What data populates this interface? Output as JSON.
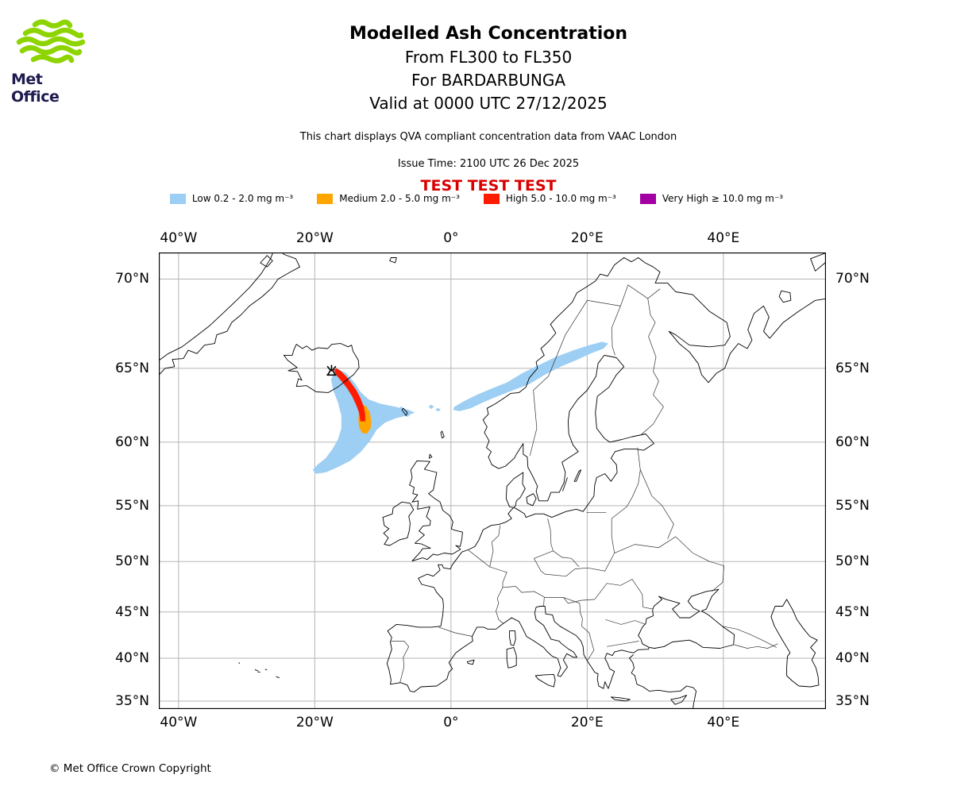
{
  "branding": {
    "logo_text": "Met Office",
    "logo_green": "#8dd400",
    "logo_navy": "#1d1a4e"
  },
  "header": {
    "title": "Modelled Ash Concentration",
    "subtitle1": "From FL300 to FL350",
    "subtitle2": "For BARDARBUNGA",
    "subtitle3": "Valid at 0000 UTC 27/12/2025",
    "note": "This chart displays QVA compliant concentration data from VAAC London",
    "issue_time": "Issue Time: 2100 UTC 26 Dec 2025",
    "test_banner": "TEST TEST TEST",
    "test_banner_color": "#d90000"
  },
  "legend": {
    "items": [
      {
        "key": "low",
        "label": "Low 0.2 - 2.0 mg m⁻³",
        "color": "#9dcef3"
      },
      {
        "key": "medium",
        "label": "Medium 2.0 - 5.0 mg m⁻³",
        "color": "#ffa500"
      },
      {
        "key": "high",
        "label": "High 5.0 - 10.0 mg m⁻³",
        "color": "#ff1a00"
      },
      {
        "key": "very_high",
        "label": "Very High  ≥  10.0 mg m⁻³",
        "color": "#a300a3"
      }
    ]
  },
  "map": {
    "x_ticks": [
      {
        "label": "40°W",
        "lon": -40
      },
      {
        "label": "20°W",
        "lon": -20
      },
      {
        "label": "0°",
        "lon": 0
      },
      {
        "label": "20°E",
        "lon": 20
      },
      {
        "label": "40°E",
        "lon": 40
      }
    ],
    "y_ticks": [
      {
        "label": "70°N",
        "lat": 70
      },
      {
        "label": "65°N",
        "lat": 65
      },
      {
        "label": "60°N",
        "lat": 60
      },
      {
        "label": "55°N",
        "lat": 55
      },
      {
        "label": "50°N",
        "lat": 50
      },
      {
        "label": "45°N",
        "lat": 45
      },
      {
        "label": "40°N",
        "lat": 40
      },
      {
        "label": "35°N",
        "lat": 35
      }
    ]
  },
  "footer": {
    "copyright": "© Met Office Crown Copyright"
  },
  "chart_data": {
    "type": "map",
    "projection": "mercator",
    "extent": {
      "lon_min": -42.9,
      "lon_max": 55.1,
      "lat_min": 33.9,
      "lat_max": 71.3
    },
    "grid": true,
    "volcano": {
      "name": "BARDARBUNGA",
      "lon": -17.53,
      "lat": 64.63
    },
    "levels": {
      "low": "#9dcef3",
      "medium": "#ffa500",
      "high": "#ff1a00",
      "very_high": "#a300a3"
    },
    "plumes": [
      {
        "level": "low",
        "polygon": [
          [
            -16.8,
            65.0
          ],
          [
            -15.4,
            64.7
          ],
          [
            -14.2,
            64.1
          ],
          [
            -13.3,
            63.5
          ],
          [
            -12.1,
            63.0
          ],
          [
            -10.3,
            62.7
          ],
          [
            -8.2,
            62.5
          ],
          [
            -6.3,
            62.3
          ],
          [
            -5.3,
            62.1
          ],
          [
            -6.5,
            61.9
          ],
          [
            -8.2,
            61.7
          ],
          [
            -9.7,
            61.4
          ],
          [
            -10.9,
            60.9
          ],
          [
            -11.9,
            60.1
          ],
          [
            -13.2,
            59.3
          ],
          [
            -14.8,
            58.6
          ],
          [
            -16.7,
            58.1
          ],
          [
            -18.4,
            57.7
          ],
          [
            -19.8,
            57.6
          ],
          [
            -20.3,
            57.9
          ],
          [
            -19.6,
            58.3
          ],
          [
            -18.4,
            58.8
          ],
          [
            -17.4,
            59.5
          ],
          [
            -16.6,
            60.2
          ],
          [
            -16.1,
            61.0
          ],
          [
            -16.1,
            61.9
          ],
          [
            -16.6,
            62.8
          ],
          [
            -17.3,
            63.6
          ],
          [
            -17.6,
            64.3
          ]
        ]
      },
      {
        "level": "low",
        "polygon": [
          [
            0.5,
            62.5
          ],
          [
            2.0,
            62.9
          ],
          [
            3.8,
            63.3
          ],
          [
            5.9,
            63.7
          ],
          [
            8.2,
            64.1
          ],
          [
            10.5,
            64.7
          ],
          [
            12.9,
            65.2
          ],
          [
            15.4,
            65.7
          ],
          [
            18.0,
            66.1
          ],
          [
            20.3,
            66.4
          ],
          [
            22.2,
            66.6
          ],
          [
            23.1,
            66.5
          ],
          [
            22.4,
            66.2
          ],
          [
            20.5,
            65.9
          ],
          [
            18.4,
            65.5
          ],
          [
            16.1,
            65.1
          ],
          [
            13.8,
            64.6
          ],
          [
            11.5,
            64.0
          ],
          [
            9.1,
            63.6
          ],
          [
            6.8,
            63.2
          ],
          [
            4.7,
            62.8
          ],
          [
            2.9,
            62.4
          ],
          [
            1.2,
            62.2
          ],
          [
            0.3,
            62.3
          ]
        ]
      },
      {
        "level": "low",
        "polygon": [
          [
            -7.7,
            62.35
          ],
          [
            -7.3,
            62.53
          ],
          [
            -6.9,
            62.35
          ],
          [
            -7.3,
            62.17
          ]
        ]
      },
      {
        "level": "low",
        "polygon": [
          [
            -6.8,
            61.95
          ],
          [
            -6.4,
            62.1
          ],
          [
            -6.0,
            61.95
          ],
          [
            -6.4,
            61.8
          ]
        ]
      },
      {
        "level": "low",
        "polygon": [
          [
            -3.3,
            62.5
          ],
          [
            -2.9,
            62.65
          ],
          [
            -2.5,
            62.5
          ],
          [
            -2.9,
            62.35
          ]
        ]
      },
      {
        "level": "low",
        "polygon": [
          [
            -2.3,
            62.3
          ],
          [
            -1.9,
            62.42
          ],
          [
            -1.5,
            62.3
          ],
          [
            -1.9,
            62.18
          ]
        ]
      },
      {
        "level": "medium",
        "polygon": [
          [
            -13.1,
            62.7
          ],
          [
            -12.4,
            62.5
          ],
          [
            -11.9,
            62.1
          ],
          [
            -11.7,
            61.5
          ],
          [
            -11.8,
            61.0
          ],
          [
            -12.4,
            60.6
          ],
          [
            -13.1,
            60.7
          ],
          [
            -13.5,
            61.1
          ],
          [
            -13.6,
            61.6
          ],
          [
            -13.5,
            62.2
          ]
        ]
      },
      {
        "level": "high",
        "polygon": [
          [
            -16.8,
            65.0
          ],
          [
            -16.1,
            64.8
          ],
          [
            -15.4,
            64.5
          ],
          [
            -14.7,
            64.1
          ],
          [
            -13.9,
            63.6
          ],
          [
            -13.3,
            63.1
          ],
          [
            -12.8,
            62.5
          ],
          [
            -12.6,
            62.0
          ],
          [
            -12.6,
            61.5
          ],
          [
            -13.3,
            61.5
          ],
          [
            -13.5,
            62.1
          ],
          [
            -13.9,
            62.6
          ],
          [
            -14.5,
            63.2
          ],
          [
            -15.2,
            63.7
          ],
          [
            -15.9,
            64.1
          ],
          [
            -16.7,
            64.5
          ],
          [
            -17.2,
            64.9
          ]
        ]
      }
    ]
  }
}
